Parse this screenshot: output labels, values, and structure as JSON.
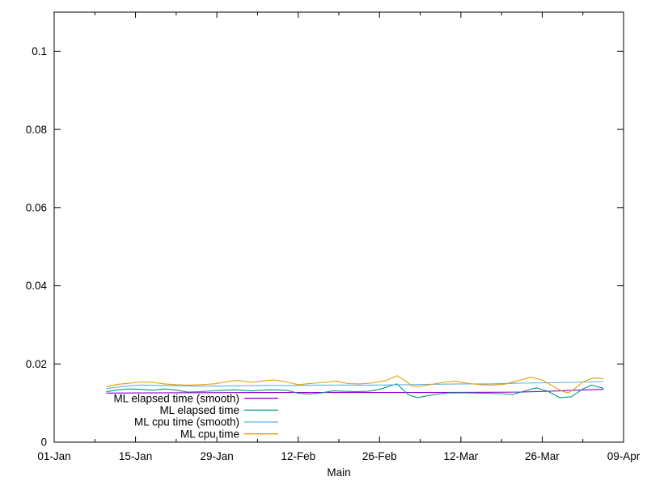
{
  "chart_data": {
    "type": "line",
    "title": "",
    "xlabel": "Main",
    "ylabel": "",
    "grid": false,
    "x_axis": {
      "unit": "date (day offset from 01-Jan)",
      "range_days": [
        0,
        98
      ],
      "major_tick_days": [
        0,
        14,
        28,
        42,
        56,
        70,
        84,
        98
      ],
      "major_tick_labels": [
        "01-Jan",
        "15-Jan",
        "29-Jan",
        "12-Feb",
        "26-Feb",
        "12-Mar",
        "26-Mar",
        "09-Apr"
      ],
      "minor_tick_days": [
        7,
        21,
        35,
        49,
        63,
        77,
        91
      ]
    },
    "y_axis": {
      "range": [
        0,
        0.11
      ],
      "tick_values": [
        0,
        0.02,
        0.04,
        0.06,
        0.08,
        0.1
      ],
      "tick_labels": [
        "0",
        "0.02",
        "0.04",
        "0.06",
        "0.08",
        "0.1"
      ]
    },
    "legend": {
      "position": "inside-bottom-left",
      "text_align": "right"
    },
    "series": [
      {
        "name": "ML elapsed time (smooth)",
        "color": "#9400d3",
        "points": [
          [
            9,
            0.01255
          ],
          [
            15,
            0.0126
          ],
          [
            25,
            0.01265
          ],
          [
            35,
            0.0127
          ],
          [
            45,
            0.0127
          ],
          [
            55,
            0.0127
          ],
          [
            65,
            0.0127
          ],
          [
            75,
            0.01275
          ],
          [
            80,
            0.0128
          ],
          [
            85,
            0.013
          ],
          [
            90,
            0.0133
          ],
          [
            94.5,
            0.0135
          ]
        ]
      },
      {
        "name": "ML elapsed time",
        "color": "#009e73",
        "points": [
          [
            9,
            0.0129
          ],
          [
            11,
            0.0134
          ],
          [
            13,
            0.0136
          ],
          [
            15,
            0.0135
          ],
          [
            17,
            0.0133
          ],
          [
            19,
            0.0136
          ],
          [
            21,
            0.0133
          ],
          [
            23,
            0.0128
          ],
          [
            25,
            0.0129
          ],
          [
            28,
            0.0132
          ],
          [
            31,
            0.0134
          ],
          [
            34,
            0.0131
          ],
          [
            37,
            0.0134
          ],
          [
            40,
            0.0133
          ],
          [
            42,
            0.0125
          ],
          [
            44,
            0.0123
          ],
          [
            46,
            0.0126
          ],
          [
            48,
            0.0131
          ],
          [
            50,
            0.013
          ],
          [
            52,
            0.0129
          ],
          [
            54,
            0.013
          ],
          [
            56,
            0.0135
          ],
          [
            59,
            0.0149
          ],
          [
            61,
            0.0121
          ],
          [
            62.5,
            0.0114
          ],
          [
            64,
            0.0118
          ],
          [
            66,
            0.0123
          ],
          [
            68,
            0.0126
          ],
          [
            71,
            0.0126
          ],
          [
            74,
            0.0125
          ],
          [
            77,
            0.0124
          ],
          [
            79,
            0.0122
          ],
          [
            81,
            0.0131
          ],
          [
            83,
            0.0139
          ],
          [
            85,
            0.013
          ],
          [
            87,
            0.0114
          ],
          [
            89,
            0.0116
          ],
          [
            91,
            0.0136
          ],
          [
            92.5,
            0.0146
          ],
          [
            94.5,
            0.0138
          ]
        ]
      },
      {
        "name": "ML cpu time (smooth)",
        "color": "#56b4e9",
        "points": [
          [
            9,
            0.0137
          ],
          [
            12,
            0.0143
          ],
          [
            15,
            0.0146
          ],
          [
            20,
            0.0145
          ],
          [
            25,
            0.0143
          ],
          [
            30,
            0.0144
          ],
          [
            35,
            0.0145
          ],
          [
            40,
            0.0145
          ],
          [
            45,
            0.0146
          ],
          [
            50,
            0.0146
          ],
          [
            55,
            0.0146
          ],
          [
            60,
            0.0147
          ],
          [
            65,
            0.0148
          ],
          [
            70,
            0.0149
          ],
          [
            75,
            0.0149
          ],
          [
            80,
            0.0151
          ],
          [
            85,
            0.0152
          ],
          [
            90,
            0.0153
          ],
          [
            94.5,
            0.0155
          ]
        ]
      },
      {
        "name": "ML cpu time",
        "color": "#e69f00",
        "points": [
          [
            9,
            0.0142
          ],
          [
            11,
            0.0148
          ],
          [
            13,
            0.0151
          ],
          [
            15,
            0.0154
          ],
          [
            17,
            0.0153
          ],
          [
            19,
            0.0149
          ],
          [
            21,
            0.0147
          ],
          [
            23,
            0.0146
          ],
          [
            25,
            0.0147
          ],
          [
            27.5,
            0.0149
          ],
          [
            29.5,
            0.0154
          ],
          [
            31.5,
            0.0158
          ],
          [
            34,
            0.0153
          ],
          [
            36,
            0.0157
          ],
          [
            38,
            0.0159
          ],
          [
            40,
            0.0154
          ],
          [
            42,
            0.0147
          ],
          [
            44,
            0.015
          ],
          [
            46.5,
            0.0153
          ],
          [
            48.5,
            0.0156
          ],
          [
            50.5,
            0.015
          ],
          [
            52.5,
            0.0149
          ],
          [
            54.5,
            0.0151
          ],
          [
            57,
            0.0157
          ],
          [
            59,
            0.017
          ],
          [
            60.5,
            0.0157
          ],
          [
            61.5,
            0.0144
          ],
          [
            63,
            0.0143
          ],
          [
            65,
            0.0148
          ],
          [
            67,
            0.0153
          ],
          [
            69,
            0.0156
          ],
          [
            71.5,
            0.015
          ],
          [
            73.5,
            0.0147
          ],
          [
            75.5,
            0.0146
          ],
          [
            77.5,
            0.0148
          ],
          [
            80,
            0.0158
          ],
          [
            82,
            0.0166
          ],
          [
            84,
            0.0159
          ],
          [
            86,
            0.0142
          ],
          [
            87.5,
            0.013
          ],
          [
            88.5,
            0.0126
          ],
          [
            89.5,
            0.0136
          ],
          [
            91,
            0.0154
          ],
          [
            92.5,
            0.0163
          ],
          [
            93.5,
            0.0164
          ],
          [
            94.5,
            0.0162
          ]
        ]
      }
    ]
  },
  "colors": {
    "background": "#ffffff",
    "axis": "#000000",
    "text": "#000000"
  }
}
